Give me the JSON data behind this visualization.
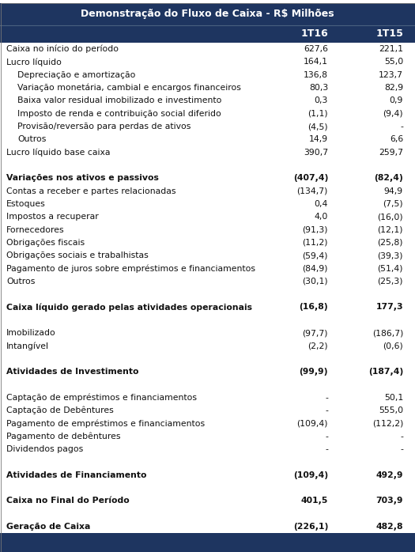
{
  "title": "Demonstração do Fluxo de Caixa - R$ Milhões",
  "header_bg": "#1e3560",
  "header_text_color": "#ffffff",
  "col_header": [
    "1T16",
    "1T15"
  ],
  "footer_bg": "#1e3560",
  "rows": [
    {
      "label": "Caixa no início do período",
      "v1": "627,6",
      "v2": "221,1",
      "bold": false,
      "indent": 0
    },
    {
      "label": "Lucro líquido",
      "v1": "164,1",
      "v2": "55,0",
      "bold": false,
      "indent": 0
    },
    {
      "label": "Depreciação e amortização",
      "v1": "136,8",
      "v2": "123,7",
      "bold": false,
      "indent": 1
    },
    {
      "label": "Variação monetária, cambial e encargos financeiros",
      "v1": "80,3",
      "v2": "82,9",
      "bold": false,
      "indent": 1
    },
    {
      "label": "Baixa valor residual imobilizado e investimento",
      "v1": "0,3",
      "v2": "0,9",
      "bold": false,
      "indent": 1
    },
    {
      "label": "Imposto de renda e contribuição social diferido",
      "v1": "(1,1)",
      "v2": "(9,4)",
      "bold": false,
      "indent": 1
    },
    {
      "label": "Provisão/reversão para perdas de ativos",
      "v1": "(4,5)",
      "v2": "-",
      "bold": false,
      "indent": 1
    },
    {
      "label": "Outros",
      "v1": "14,9",
      "v2": "6,6",
      "bold": false,
      "indent": 1
    },
    {
      "label": "Lucro líquido base caixa",
      "v1": "390,7",
      "v2": "259,7",
      "bold": false,
      "indent": 0
    },
    {
      "label": "",
      "v1": "",
      "v2": "",
      "bold": false,
      "indent": 0
    },
    {
      "label": "Variações nos ativos e passivos",
      "v1": "(407,4)",
      "v2": "(82,4)",
      "bold": true,
      "indent": 0
    },
    {
      "label": "Contas a receber e partes relacionadas",
      "v1": "(134,7)",
      "v2": "94,9",
      "bold": false,
      "indent": 0
    },
    {
      "label": "Estoques",
      "v1": "0,4",
      "v2": "(7,5)",
      "bold": false,
      "indent": 0
    },
    {
      "label": "Impostos a recuperar",
      "v1": "4,0",
      "v2": "(16,0)",
      "bold": false,
      "indent": 0
    },
    {
      "label": "Fornecedores",
      "v1": "(91,3)",
      "v2": "(12,1)",
      "bold": false,
      "indent": 0
    },
    {
      "label": "Obrigações fiscais",
      "v1": "(11,2)",
      "v2": "(25,8)",
      "bold": false,
      "indent": 0
    },
    {
      "label": "Obrigações sociais e trabalhistas",
      "v1": "(59,4)",
      "v2": "(39,3)",
      "bold": false,
      "indent": 0
    },
    {
      "label": "Pagamento de juros sobre empréstimos e financiamentos",
      "v1": "(84,9)",
      "v2": "(51,4)",
      "bold": false,
      "indent": 0
    },
    {
      "label": "Outros",
      "v1": "(30,1)",
      "v2": "(25,3)",
      "bold": false,
      "indent": 0
    },
    {
      "label": "",
      "v1": "",
      "v2": "",
      "bold": false,
      "indent": 0
    },
    {
      "label": "Caixa líquido gerado pelas atividades operacionais",
      "v1": "(16,8)",
      "v2": "177,3",
      "bold": true,
      "indent": 0
    },
    {
      "label": "",
      "v1": "",
      "v2": "",
      "bold": false,
      "indent": 0
    },
    {
      "label": "Imobilizado",
      "v1": "(97,7)",
      "v2": "(186,7)",
      "bold": false,
      "indent": 0
    },
    {
      "label": "Intangível",
      "v1": "(2,2)",
      "v2": "(0,6)",
      "bold": false,
      "indent": 0
    },
    {
      "label": "",
      "v1": "",
      "v2": "",
      "bold": false,
      "indent": 0
    },
    {
      "label": "Atividades de Investimento",
      "v1": "(99,9)",
      "v2": "(187,4)",
      "bold": true,
      "indent": 0
    },
    {
      "label": "",
      "v1": "",
      "v2": "",
      "bold": false,
      "indent": 0
    },
    {
      "label": "Captação de empréstimos e financiamentos",
      "v1": "-",
      "v2": "50,1",
      "bold": false,
      "indent": 0
    },
    {
      "label": "Captação de Debêntures",
      "v1": "-",
      "v2": "555,0",
      "bold": false,
      "indent": 0
    },
    {
      "label": "Pagamento de empréstimos e financiamentos",
      "v1": "(109,4)",
      "v2": "(112,2)",
      "bold": false,
      "indent": 0
    },
    {
      "label": "Pagamento de debêntures",
      "v1": "-",
      "v2": "-",
      "bold": false,
      "indent": 0
    },
    {
      "label": "Dividendos pagos",
      "v1": "-",
      "v2": "-",
      "bold": false,
      "indent": 0
    },
    {
      "label": "",
      "v1": "",
      "v2": "",
      "bold": false,
      "indent": 0
    },
    {
      "label": "Atividades de Financiamento",
      "v1": "(109,4)",
      "v2": "492,9",
      "bold": true,
      "indent": 0
    },
    {
      "label": "",
      "v1": "",
      "v2": "",
      "bold": false,
      "indent": 0
    },
    {
      "label": "Caixa no Final do Período",
      "v1": "401,5",
      "v2": "703,9",
      "bold": true,
      "indent": 0
    },
    {
      "label": "",
      "v1": "",
      "v2": "",
      "bold": false,
      "indent": 0
    },
    {
      "label": "Geração de Caixa",
      "v1": "(226,1)",
      "v2": "482,8",
      "bold": true,
      "indent": 0
    }
  ],
  "fig_width": 5.25,
  "fig_height": 6.98,
  "dpi": 100
}
